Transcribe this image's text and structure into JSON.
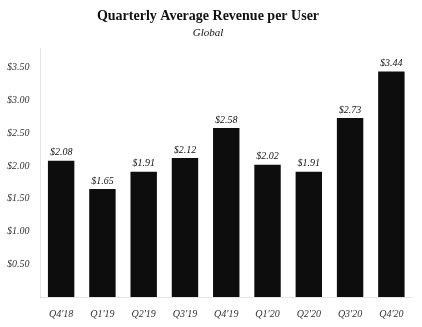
{
  "chart_data": {
    "type": "bar",
    "title": "Quarterly Average Revenue per User",
    "subtitle": "Global",
    "categories": [
      "Q4'18",
      "Q1'19",
      "Q2'19",
      "Q3'19",
      "Q4'19",
      "Q1'20",
      "Q2'20",
      "Q3'20",
      "Q4'20"
    ],
    "values": [
      2.08,
      1.65,
      1.91,
      2.12,
      2.58,
      2.02,
      1.91,
      2.73,
      3.44
    ],
    "value_labels": [
      "$2.08",
      "$1.65",
      "$1.91",
      "$2.12",
      "$2.58",
      "$2.02",
      "$1.91",
      "$2.73",
      "$3.44"
    ],
    "data_labels": true,
    "color": "#0d0d0d",
    "ylim": [
      0,
      3.8
    ],
    "yticks": [
      {
        "value": 0.5,
        "label": "$0.50"
      },
      {
        "value": 1.0,
        "label": "$1.00"
      },
      {
        "value": 1.5,
        "label": "$1.50"
      },
      {
        "value": 2.0,
        "label": "$2.00"
      },
      {
        "value": 2.5,
        "label": "$2.50"
      },
      {
        "value": 3.0,
        "label": "$3.00"
      },
      {
        "value": 3.5,
        "label": "$3.50"
      }
    ],
    "grid": false
  }
}
